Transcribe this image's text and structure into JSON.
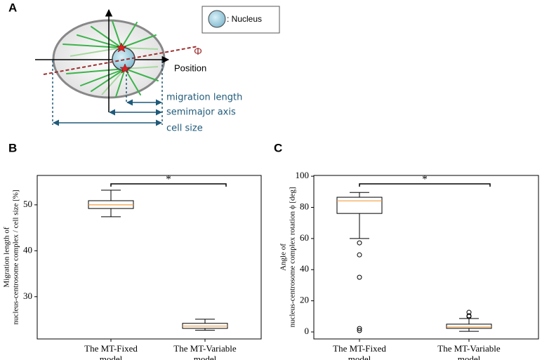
{
  "panel_labels": [
    "A",
    "B",
    "C"
  ],
  "diagram": {
    "legend": ": Nucleus",
    "angle": "Φ",
    "axis": "Position",
    "measures": [
      "migration length",
      "semimajor  axis",
      "cell size"
    ]
  },
  "chart_data": [
    {
      "type": "box",
      "ylabel": [
        "Migration length of",
        "nucleus-centrosome complex / cell size [%]"
      ],
      "categories": [
        [
          "The MT-Fixed",
          "model"
        ],
        [
          "The MT-Variable",
          "model"
        ]
      ],
      "boxes": [
        {
          "min": 47.4,
          "q1": 49.2,
          "median": 50.0,
          "q3": 50.9,
          "max": 53.2,
          "outliers": []
        },
        {
          "min": 22.7,
          "q1": 23.1,
          "median": 23.6,
          "q3": 24.2,
          "max": 25.1,
          "outliers": []
        }
      ],
      "median_color": "#f39c3c",
      "annotation": "*",
      "ylim": [
        20.8,
        56.4
      ],
      "yticks": [
        30,
        40,
        50
      ]
    },
    {
      "type": "box",
      "ylabel": [
        "Angle of",
        "nucleus-centrosome complex rotation ϕ [deg]"
      ],
      "categories": [
        [
          "The MT-Fixed",
          "model"
        ],
        [
          "The MT-Variable",
          "model"
        ]
      ],
      "boxes": [
        {
          "min": 60.0,
          "q1": 76.1,
          "median": 84.2,
          "q3": 86.5,
          "max": 89.6,
          "outliers": [
            57.2,
            49.5,
            35.1,
            2.2,
            0.9
          ]
        },
        {
          "min": 0.4,
          "q1": 2.3,
          "median": 3.2,
          "q3": 5.0,
          "max": 8.6,
          "outliers": [
            9.9,
            10.4,
            12.6
          ]
        }
      ],
      "median_color": "#f39c3c",
      "annotation": "*",
      "ylim": [
        -4.5,
        100.5
      ],
      "yticks": [
        0,
        20,
        40,
        60,
        80,
        100
      ]
    }
  ]
}
